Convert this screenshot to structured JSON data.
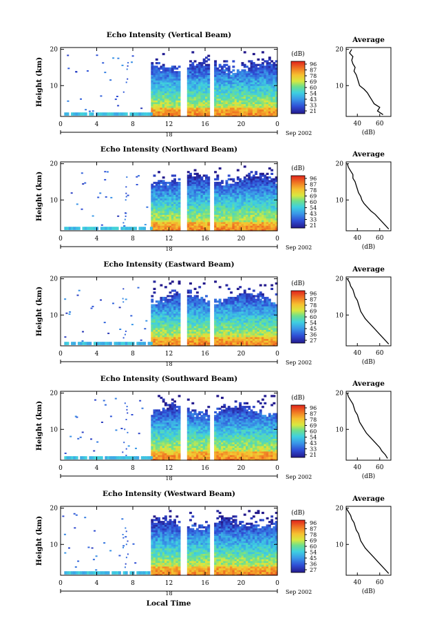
{
  "figure": {
    "xlabel": "Local Time",
    "date_label": "Sep 2002",
    "date_day": "18",
    "colorbar_unit": "(dB)",
    "colorbar_ticks": [
      "96",
      "87",
      "78",
      "69",
      "60",
      "54",
      "45",
      "36",
      "27"
    ],
    "colorbar_ticks_displayed": [
      "96",
      "87",
      "78",
      "69",
      "60",
      "54",
      "43",
      "33",
      "21"
    ],
    "average_title": "Average",
    "average_xlabel": "(dB)"
  },
  "chart_data": [
    {
      "type": "heatmap",
      "title": "Echo Intensity (Vertical Beam)",
      "xlabel": "Local Time",
      "ylabel": "Height (km)",
      "x_ticks": [
        "0",
        "4",
        "8",
        "12",
        "16",
        "20",
        "0"
      ],
      "y_ticks": [
        "20",
        "10"
      ],
      "xlim": [
        0,
        24
      ],
      "ylim": [
        1.5,
        20.5
      ],
      "data_gaps_hours": [
        [
          0,
          10
        ],
        [
          13.3,
          13.9
        ],
        [
          16.6,
          17.1
        ]
      ],
      "colorscale_db": [
        21,
        96
      ],
      "colorbar_ticks": [
        "96",
        "87",
        "78",
        "69",
        "60",
        "54",
        "43",
        "33",
        "21"
      ],
      "top_height_km": 15.5,
      "average": {
        "title": "Average",
        "xlabel": "(dB)",
        "x_ticks": [
          "40",
          "60"
        ],
        "y_ticks": [
          "20",
          "10"
        ],
        "xlim": [
          30,
          70
        ],
        "height_km": [
          20,
          19,
          18,
          17,
          16,
          15,
          14,
          13,
          12,
          11,
          10,
          9,
          8,
          7,
          6,
          5,
          4,
          3,
          2
        ],
        "values_db": [
          35,
          33,
          36,
          35,
          36,
          38,
          37,
          39,
          40,
          41,
          42,
          46,
          49,
          51,
          53,
          55,
          60,
          58,
          63
        ]
      }
    },
    {
      "type": "heatmap",
      "title": "Echo Intensity (Northward Beam)",
      "xlabel": "Local Time",
      "ylabel": "Height (km)",
      "x_ticks": [
        "0",
        "4",
        "8",
        "12",
        "16",
        "20",
        "0"
      ],
      "y_ticks": [
        "20",
        "10"
      ],
      "xlim": [
        0,
        24
      ],
      "ylim": [
        1.5,
        20.5
      ],
      "data_gaps_hours": [
        [
          0,
          10
        ],
        [
          13.3,
          13.9
        ],
        [
          16.6,
          17.1
        ]
      ],
      "colorscale_db": [
        21,
        96
      ],
      "colorbar_ticks": [
        "96",
        "87",
        "78",
        "69",
        "60",
        "54",
        "43",
        "33",
        "21"
      ],
      "top_height_km": 16,
      "average": {
        "title": "Average",
        "xlabel": "(dB)",
        "x_ticks": [
          "40",
          "60"
        ],
        "y_ticks": [
          "20",
          "10"
        ],
        "xlim": [
          30,
          70
        ],
        "height_km": [
          20,
          19,
          18,
          17,
          16,
          15,
          14,
          13,
          12,
          11,
          10,
          9,
          8,
          7,
          6,
          5,
          4,
          3,
          2
        ],
        "values_db": [
          31,
          32,
          34,
          36,
          36,
          38,
          39,
          40,
          41,
          43,
          44,
          46,
          49,
          52,
          56,
          59,
          62,
          65,
          68
        ]
      }
    },
    {
      "type": "heatmap",
      "title": "Echo Intensity (Eastward Beam)",
      "xlabel": "Local Time",
      "ylabel": "Height (km)",
      "x_ticks": [
        "0",
        "4",
        "8",
        "12",
        "16",
        "20",
        "0"
      ],
      "y_ticks": [
        "20",
        "10"
      ],
      "xlim": [
        0,
        24
      ],
      "ylim": [
        1.5,
        20.5
      ],
      "data_gaps_hours": [
        [
          0,
          10
        ],
        [
          13.3,
          13.9
        ],
        [
          16.6,
          17.1
        ]
      ],
      "colorscale_db": [
        21,
        96
      ],
      "colorbar_ticks": [
        "96",
        "87",
        "78",
        "69",
        "60",
        "54",
        "45",
        "36",
        "27"
      ],
      "top_height_km": 15,
      "average": {
        "title": "Average",
        "xlabel": "(dB)",
        "x_ticks": [
          "40",
          "60"
        ],
        "y_ticks": [
          "20",
          "10"
        ],
        "xlim": [
          30,
          70
        ],
        "height_km": [
          20,
          19,
          18,
          17,
          16,
          15,
          14,
          13,
          12,
          11,
          10,
          9,
          8,
          7,
          6,
          5,
          4,
          3,
          2
        ],
        "values_db": [
          31,
          33,
          34,
          36,
          37,
          38,
          40,
          41,
          42,
          43,
          45,
          47,
          50,
          53,
          56,
          59,
          62,
          65,
          68
        ]
      }
    },
    {
      "type": "heatmap",
      "title": "Echo Intensity (Southward Beam)",
      "xlabel": "Local Time",
      "ylabel": "Height (km)",
      "x_ticks": [
        "0",
        "4",
        "8",
        "12",
        "16",
        "20",
        "0"
      ],
      "y_ticks": [
        "20",
        "10"
      ],
      "xlim": [
        0,
        24
      ],
      "ylim": [
        1.5,
        20.5
      ],
      "data_gaps_hours": [
        [
          0,
          10
        ],
        [
          13.3,
          13.9
        ],
        [
          16.6,
          17.1
        ]
      ],
      "colorscale_db": [
        21,
        96
      ],
      "colorbar_ticks": [
        "96",
        "87",
        "78",
        "69",
        "60",
        "54",
        "43",
        "33",
        "21"
      ],
      "top_height_km": 15.5,
      "average": {
        "title": "Average",
        "xlabel": "(dB)",
        "x_ticks": [
          "40",
          "60"
        ],
        "y_ticks": [
          "20",
          "10"
        ],
        "xlim": [
          30,
          70
        ],
        "height_km": [
          20,
          19,
          18,
          17,
          16,
          15,
          14,
          13,
          12,
          11,
          10,
          9,
          8,
          7,
          6,
          5,
          4,
          3,
          2
        ],
        "values_db": [
          31,
          32,
          34,
          36,
          37,
          38,
          40,
          41,
          42,
          44,
          46,
          48,
          51,
          54,
          57,
          60,
          62,
          65,
          67
        ]
      }
    },
    {
      "type": "heatmap",
      "title": "Echo Intensity (Westward Beam)",
      "xlabel": "Local Time",
      "ylabel": "Height (km)",
      "x_ticks": [
        "0",
        "4",
        "8",
        "12",
        "16",
        "20",
        "0"
      ],
      "y_ticks": [
        "20",
        "10"
      ],
      "xlim": [
        0,
        24
      ],
      "ylim": [
        1.5,
        20.5
      ],
      "data_gaps_hours": [
        [
          0,
          10
        ],
        [
          13.3,
          13.9
        ],
        [
          16.6,
          17.1
        ]
      ],
      "colorscale_db": [
        21,
        96
      ],
      "colorbar_ticks": [
        "96",
        "87",
        "78",
        "69",
        "60",
        "54",
        "45",
        "36",
        "27"
      ],
      "top_height_km": 16,
      "average": {
        "title": "Average",
        "xlabel": "(dB)",
        "x_ticks": [
          "40",
          "60"
        ],
        "y_ticks": [
          "20",
          "10"
        ],
        "xlim": [
          30,
          70
        ],
        "height_km": [
          20,
          19,
          18,
          17,
          16,
          15,
          14,
          13,
          12,
          11,
          10,
          9,
          8,
          7,
          6,
          5,
          4,
          3,
          2
        ],
        "values_db": [
          30,
          32,
          34,
          35,
          37,
          38,
          39,
          41,
          42,
          43,
          45,
          47,
          50,
          53,
          56,
          59,
          62,
          65,
          68
        ]
      }
    }
  ]
}
